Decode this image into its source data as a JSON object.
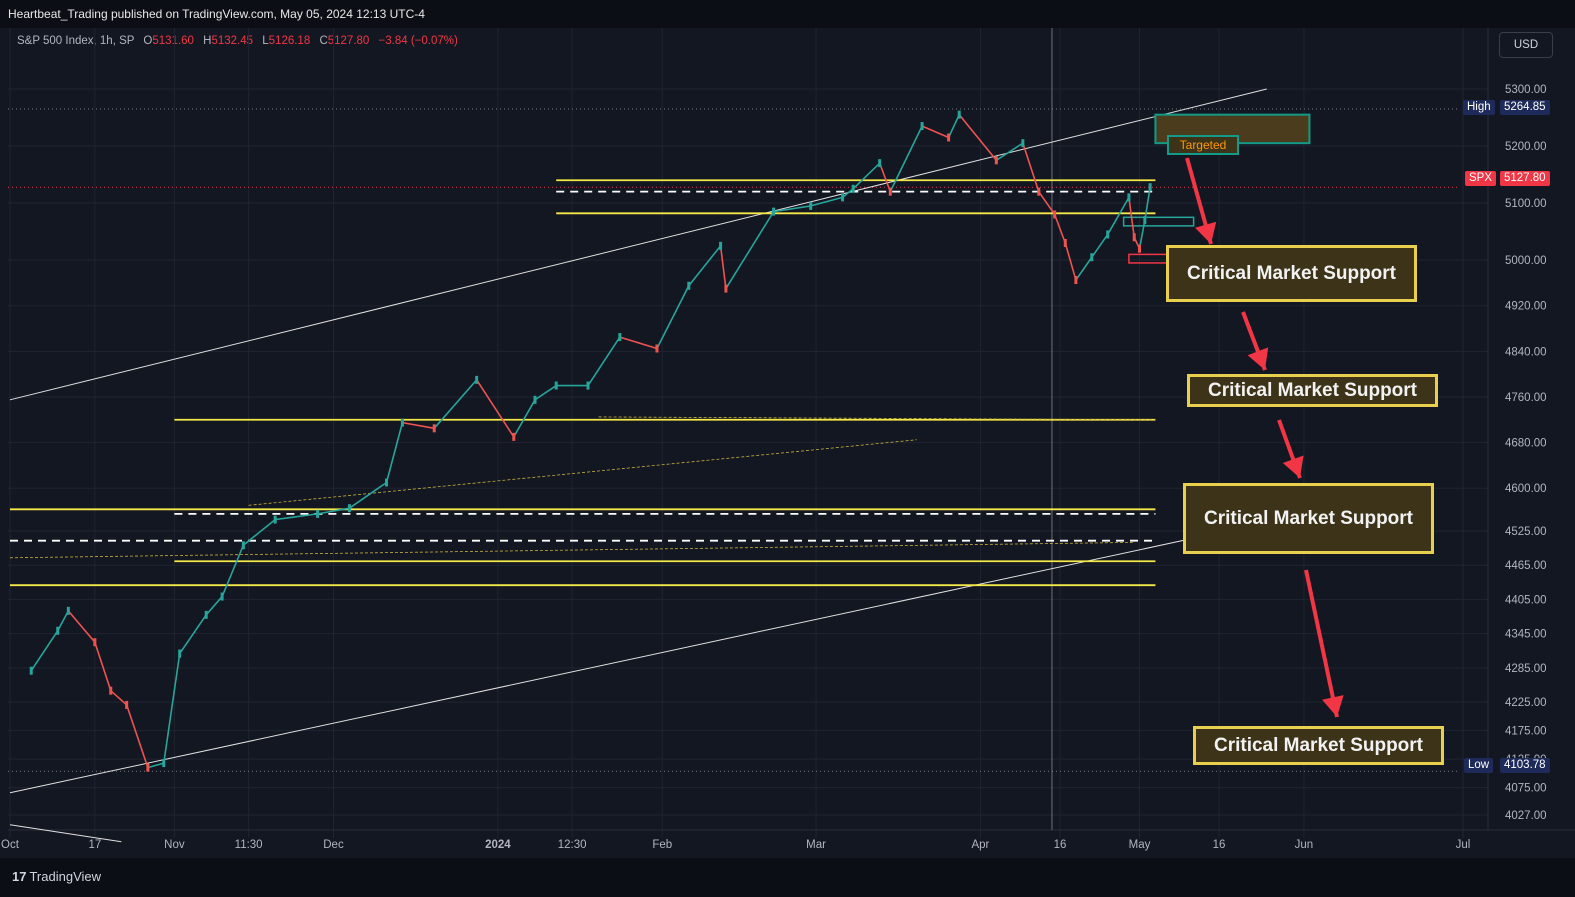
{
  "header": {
    "publisher": "Heartbeat_Trading published on TradingView.com, May 05, 2024 12:13 UTC-4"
  },
  "legend": {
    "symbol": "S&P 500 Index, 1h, SP",
    "o_label": "O",
    "o": "5131.60",
    "h_label": "H",
    "h": "5132.45",
    "l_label": "L",
    "l": "5126.18",
    "c_label": "C",
    "c": "5127.80",
    "change": "−3.84 (−0.07%)"
  },
  "currency_button": "USD",
  "footer": {
    "logo_text": "TradingView"
  },
  "colors": {
    "up": "#26a69a",
    "down": "#ef5350",
    "level": "#f5e94a",
    "arrow": "#f23645",
    "background": "#131722"
  },
  "annotations": {
    "targeted": "Targeted",
    "support_1": "Critical Market Support",
    "support_2": "Critical Market Support",
    "support_3": "Critical Market Support",
    "support_4": "Critical Market Support"
  },
  "price_labels": {
    "high_tag": "High",
    "high_value": "5264.85",
    "symbol_tag": "SPX",
    "last_value": "5127.80",
    "low_tag": "Low",
    "low_value": "4103.78"
  },
  "chart_data": {
    "type": "line",
    "symbol": "SPX",
    "interval": "1h",
    "y_ticks": [
      5300,
      5200,
      5100,
      5000,
      4920,
      4840,
      4760,
      4680,
      4600,
      4525,
      4465,
      4405,
      4345,
      4285,
      4225,
      4175,
      4125,
      4075,
      4027
    ],
    "y_tick_labels": [
      "5300.00",
      "5200.00",
      "5100.00",
      "5000.00",
      "4920.00",
      "4840.00",
      "4760.00",
      "4680.00",
      "4600.00",
      "4525.00",
      "4465.00",
      "4405.00",
      "4345.00",
      "4285.00",
      "4225.00",
      "4175.00",
      "4125.00",
      "4075.00",
      "4027.00"
    ],
    "x_tick_labels": [
      "Oct",
      "17",
      "Nov",
      "11:30",
      "Dec",
      "2024",
      "12:30",
      "Feb",
      "Mar",
      "Apr",
      "16",
      "May",
      "16",
      "Jun",
      "Jul"
    ],
    "series": [
      {
        "x": [
          "2023-10-05",
          "2023-10-10",
          "2023-10-12",
          "2023-10-17",
          "2023-10-20",
          "2023-10-23",
          "2023-10-27",
          "2023-10-30",
          "2023-11-02",
          "2023-11-07",
          "2023-11-10",
          "2023-11-14",
          "2023-11-20",
          "2023-11-28",
          "2023-12-04",
          "2023-12-11",
          "2023-12-14",
          "2023-12-20",
          "2023-12-28",
          "2024-01-04",
          "2024-01-08",
          "2024-01-12",
          "2024-01-18",
          "2024-01-24",
          "2024-01-31",
          "2024-02-06",
          "2024-02-12",
          "2024-02-13",
          "2024-02-22",
          "2024-02-29",
          "2024-03-06",
          "2024-03-08",
          "2024-03-13",
          "2024-03-15",
          "2024-03-21",
          "2024-03-26",
          "2024-03-28",
          "2024-04-04",
          "2024-04-09",
          "2024-04-12",
          "2024-04-15",
          "2024-04-17",
          "2024-04-19",
          "2024-04-22",
          "2024-04-25",
          "2024-04-29",
          "2024-04-30",
          "2024-05-01",
          "2024-05-02",
          "2024-05-03"
        ],
        "values": [
          4280,
          4350,
          4385,
          4330,
          4245,
          4220,
          4110,
          4118,
          4310,
          4378,
          4410,
          4500,
          4545,
          4555,
          4565,
          4610,
          4715,
          4705,
          4790,
          4690,
          4755,
          4780,
          4780,
          4865,
          4845,
          4955,
          5025,
          4950,
          5085,
          5095,
          5110,
          5125,
          5170,
          5120,
          5235,
          5215,
          5255,
          5175,
          5205,
          5120,
          5080,
          5030,
          4965,
          5005,
          5045,
          5110,
          5040,
          5020,
          5070,
          5127.8
        ]
      }
    ],
    "high": 5264.85,
    "low": 4103.78,
    "last": 5127.8,
    "ylim": [
      4005,
      5340
    ],
    "horizontal_levels_solid": [
      5140,
      5082,
      4720,
      4563,
      4472,
      4430
    ],
    "horizontal_levels_dashed": [
      5120,
      4555,
      4508
    ],
    "grid": true
  }
}
